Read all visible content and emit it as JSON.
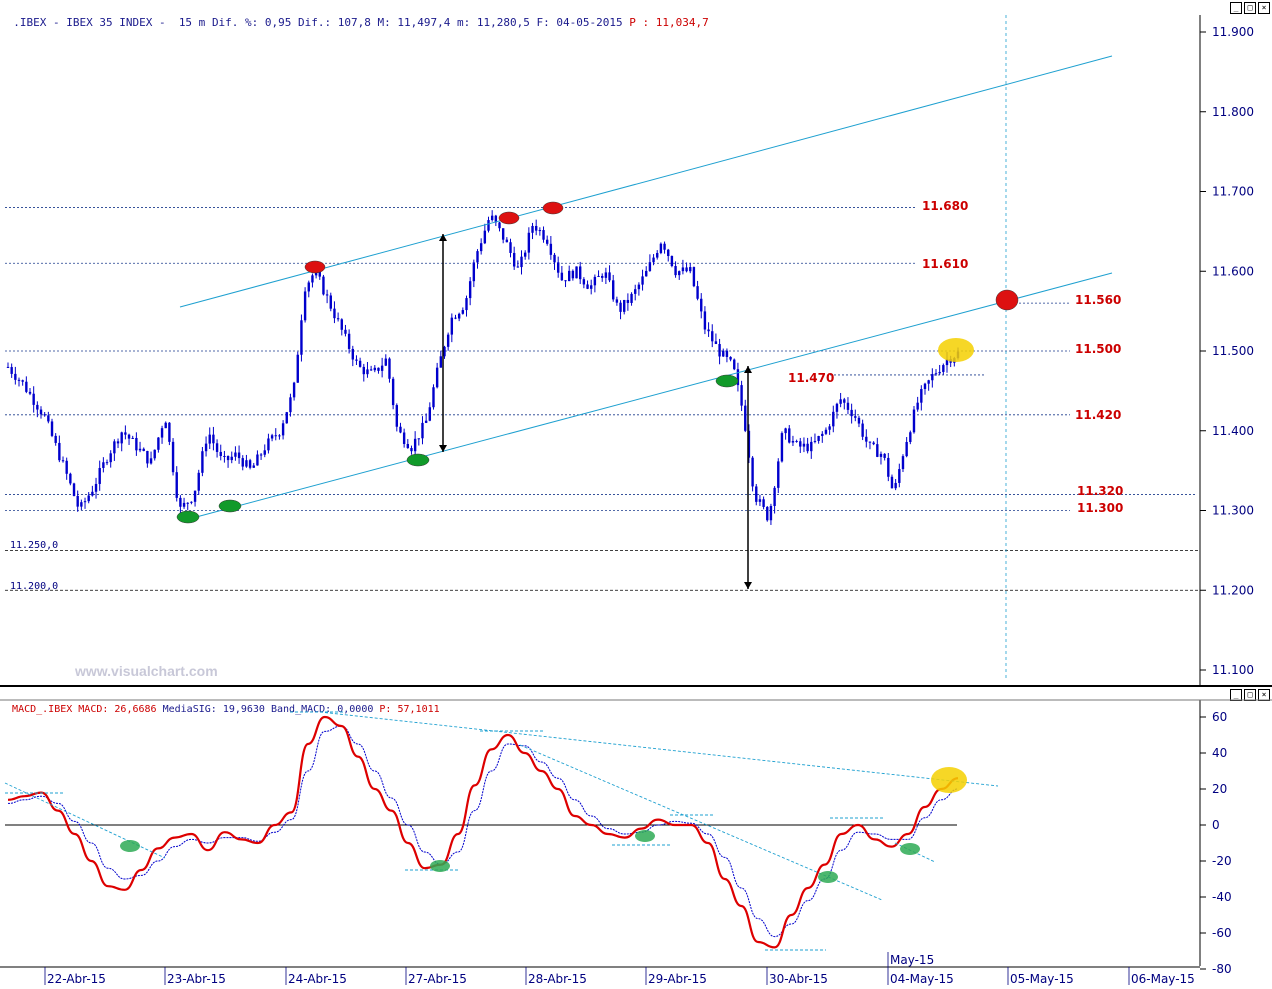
{
  "header": {
    "symbol": ".IBEX - IBEX 35 INDEX -  15 m",
    "dif_pct_label": "Dif. %:",
    "dif_pct": "0,95",
    "dif_label": "Dif.:",
    "dif": "107,8",
    "max_label": "M:",
    "max": "11,497,4",
    "min_label": "m:",
    "min": "11,280,5",
    "date_label": "F:",
    "date": "04-05-2015",
    "p_label": "P :",
    "p": "11,034,7"
  },
  "macd_header": {
    "name": "MACD_.IBEX MACD:",
    "macd": "26,6686",
    "sig_label": "MediaSIG:",
    "sig": "19,9630",
    "band_label": "Band_MACD:",
    "band": "0,0000",
    "p_label": "P:",
    "p": "57,1011"
  },
  "watermark": "www.visualchart.com",
  "levels": {
    "l11680": "11.680",
    "l11610": "11.610",
    "l11560": "11.560",
    "l11500": "11.500",
    "l11470": "11.470",
    "l11420": "11.420",
    "l11320": "11.320",
    "l11300": "11.300",
    "l11250": "11.250,0",
    "l11200": "11.200,0"
  },
  "colors": {
    "candle": "#0000cc",
    "channel": "#1ea0d0",
    "hline": "#1a3a8c",
    "level_text": "#cc0000",
    "macd": "#dd0000",
    "signal": "#0000cc",
    "green_marker": "#119a2a",
    "red_marker": "#dd1111",
    "yellow_marker": "#f4d000"
  },
  "chart_data": [
    {
      "type": "candlestick",
      "title": "IBEX 35 INDEX - 15 m",
      "y_ticks": [
        "11.900",
        "11.800",
        "11.700",
        "11.600",
        "11.500",
        "11.400",
        "11.300",
        "11.200",
        "11.100"
      ],
      "x_ticks": [
        "22-Abr-15",
        "23-Abr-15",
        "24-Abr-15",
        "27-Abr-15",
        "28-Abr-15",
        "29-Abr-15",
        "30-Abr-15",
        "04-May-15",
        "05-May-15",
        "06-May-15"
      ],
      "x_marker_label": "May-15",
      "ylim": [
        11080,
        11920
      ],
      "price_path": [
        [
          0,
          11480
        ],
        [
          8,
          11460
        ],
        [
          20,
          11420
        ],
        [
          32,
          11350
        ],
        [
          40,
          11300
        ],
        [
          48,
          11330
        ],
        [
          56,
          11370
        ],
        [
          64,
          11400
        ],
        [
          72,
          11380
        ],
        [
          80,
          11360
        ],
        [
          88,
          11420
        ],
        [
          96,
          11300
        ],
        [
          104,
          11320
        ],
        [
          112,
          11400
        ],
        [
          120,
          11360
        ],
        [
          128,
          11370
        ],
        [
          136,
          11350
        ],
        [
          144,
          11380
        ],
        [
          152,
          11400
        ],
        [
          160,
          11450
        ],
        [
          166,
          11580
        ],
        [
          172,
          11600
        ],
        [
          180,
          11560
        ],
        [
          188,
          11520
        ],
        [
          196,
          11480
        ],
        [
          204,
          11470
        ],
        [
          212,
          11490
        ],
        [
          218,
          11400
        ],
        [
          226,
          11380
        ],
        [
          234,
          11410
        ],
        [
          240,
          11470
        ],
        [
          248,
          11540
        ],
        [
          256,
          11560
        ],
        [
          262,
          11620
        ],
        [
          270,
          11670
        ],
        [
          278,
          11640
        ],
        [
          286,
          11600
        ],
        [
          294,
          11660
        ],
        [
          302,
          11640
        ],
        [
          310,
          11590
        ],
        [
          318,
          11600
        ],
        [
          326,
          11580
        ],
        [
          334,
          11600
        ],
        [
          342,
          11550
        ],
        [
          350,
          11570
        ],
        [
          358,
          11600
        ],
        [
          366,
          11640
        ],
        [
          374,
          11600
        ],
        [
          382,
          11600
        ],
        [
          390,
          11530
        ],
        [
          398,
          11500
        ],
        [
          406,
          11480
        ],
        [
          412,
          11420
        ],
        [
          418,
          11320
        ],
        [
          426,
          11290
        ],
        [
          434,
          11400
        ],
        [
          442,
          11380
        ],
        [
          450,
          11380
        ],
        [
          458,
          11400
        ],
        [
          466,
          11440
        ],
        [
          474,
          11420
        ],
        [
          482,
          11380
        ],
        [
          490,
          11370
        ],
        [
          496,
          11320
        ],
        [
          502,
          11380
        ],
        [
          510,
          11440
        ],
        [
          518,
          11470
        ],
        [
          526,
          11490
        ],
        [
          532,
          11497
        ]
      ],
      "levels": [
        11680,
        11610,
        11560,
        11500,
        11470,
        11420,
        11320,
        11300,
        11250,
        11200
      ]
    },
    {
      "type": "line",
      "title": "MACD",
      "y_ticks": [
        "60",
        "40",
        "20",
        "0",
        "-20",
        "-40",
        "-60",
        "-80"
      ],
      "ylim": [
        -80,
        65
      ],
      "series": [
        {
          "name": "MACD",
          "values": [
            14,
            16,
            18,
            8,
            -5,
            -20,
            -34,
            -36,
            -25,
            -13,
            -7,
            -5,
            -14,
            -4,
            -8,
            -10,
            0,
            7,
            45,
            60,
            55,
            38,
            20,
            8,
            -10,
            -24,
            -22,
            -5,
            22,
            42,
            50,
            40,
            30,
            20,
            5,
            0,
            -5,
            -7,
            -2,
            3,
            0,
            0,
            -10,
            -30,
            -45,
            -65,
            -68,
            -50,
            -35,
            -22,
            -5,
            0,
            -8,
            -12,
            -5,
            10,
            20,
            26
          ]
        },
        {
          "name": "MediaSIG",
          "values": [
            12,
            14,
            16,
            12,
            2,
            -10,
            -24,
            -30,
            -28,
            -20,
            -12,
            -8,
            -10,
            -7,
            -7,
            -9,
            -4,
            3,
            30,
            52,
            55,
            45,
            30,
            15,
            0,
            -15,
            -22,
            -15,
            8,
            30,
            45,
            44,
            35,
            26,
            14,
            5,
            -2,
            -5,
            -4,
            0,
            2,
            1,
            -5,
            -18,
            -35,
            -52,
            -62,
            -55,
            -42,
            -30,
            -14,
            -4,
            -5,
            -8,
            -8,
            4,
            14,
            20
          ]
        }
      ]
    }
  ]
}
